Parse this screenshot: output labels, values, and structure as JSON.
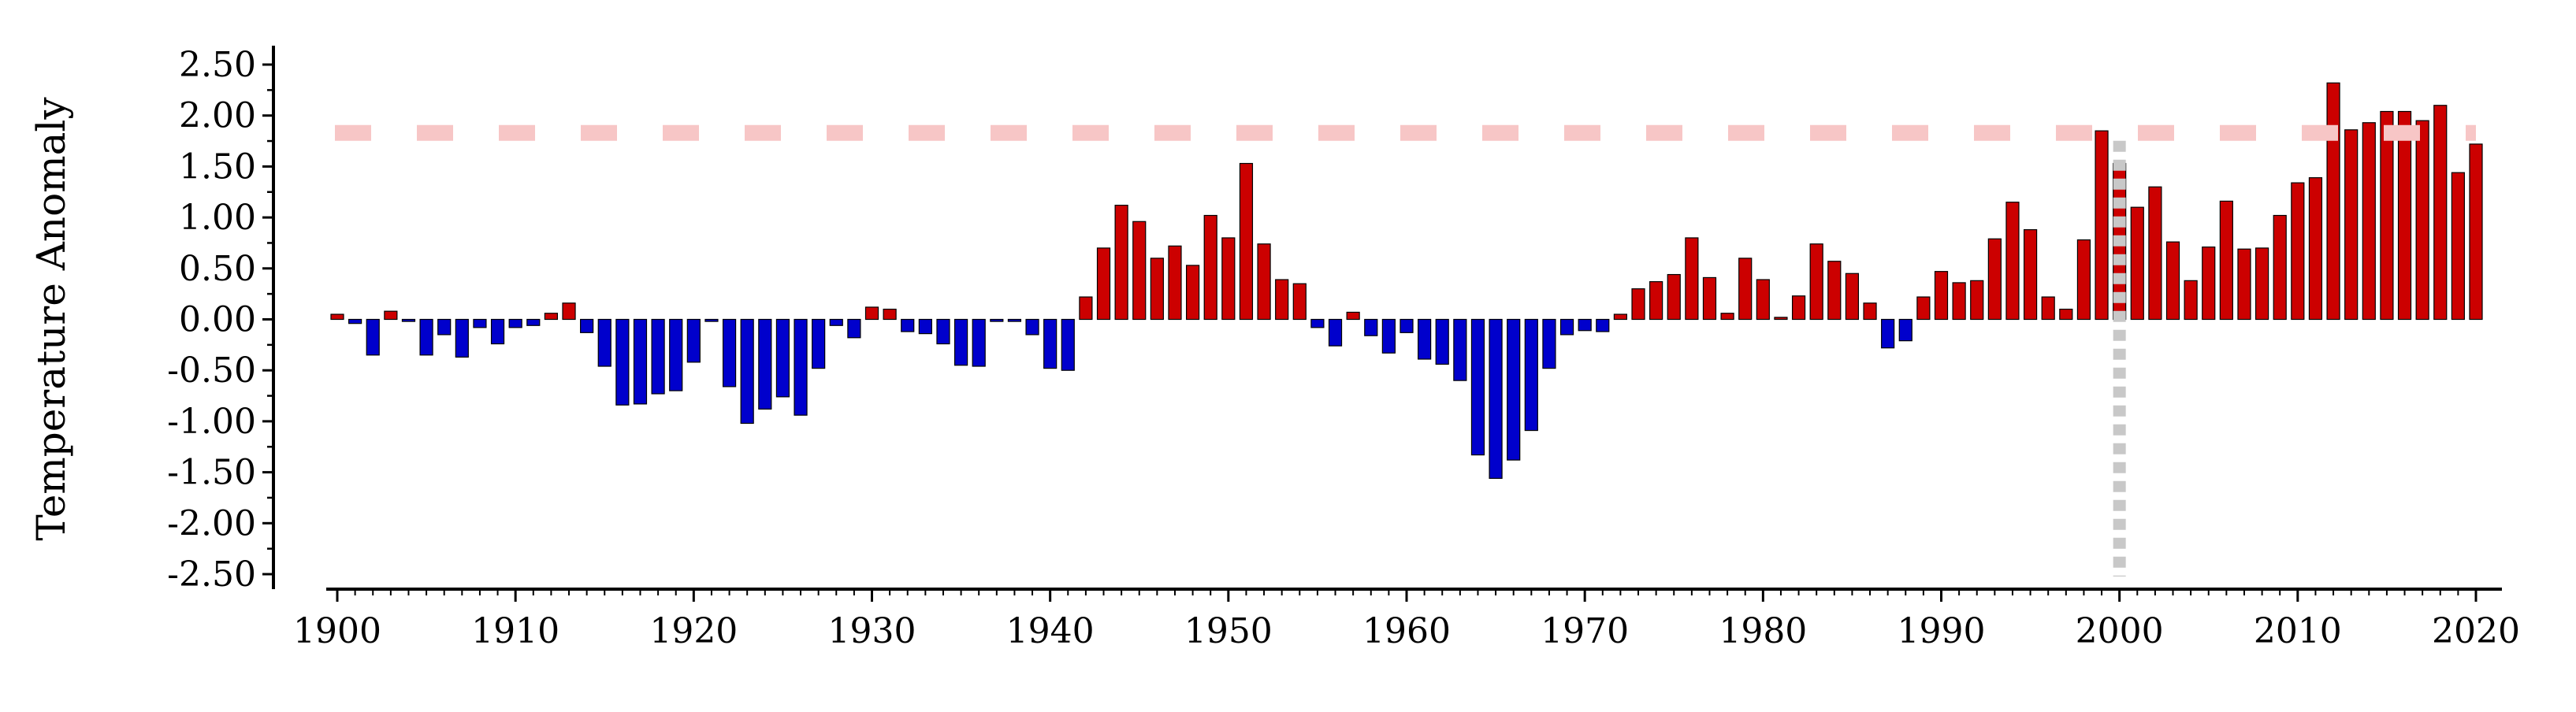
{
  "chart_data": {
    "type": "bar",
    "title": "",
    "xlabel": "",
    "ylabel": "Temperature Anomaly",
    "xlim": [
      1900,
      2020
    ],
    "ylim": [
      -2.5,
      2.5
    ],
    "x_ticks": [
      1900,
      1910,
      1920,
      1930,
      1940,
      1950,
      1960,
      1970,
      1980,
      1990,
      2000,
      2010,
      2020
    ],
    "x_tick_labels": [
      "1900",
      "1910",
      "1920",
      "1930",
      "1940",
      "1950",
      "1960",
      "1970",
      "1980",
      "1990",
      "2000",
      "2010",
      "2020"
    ],
    "y_ticks": [
      2.5,
      2.0,
      1.5,
      1.0,
      0.5,
      0.0,
      -0.5,
      -1.0,
      -1.5,
      -2.0,
      -2.5
    ],
    "y_tick_labels": [
      "2.50",
      "2.00",
      "1.50",
      "1.00",
      "0.50",
      "0.00",
      "-0.50",
      "-1.00",
      "-1.50",
      "-2.00",
      "-2.50"
    ],
    "grid": false,
    "legend": "none",
    "colors": {
      "positive": "#cc0000",
      "negative": "#0000cc",
      "threshold": "#f7c6c6",
      "marker": "#c8c8c8",
      "outline": "#000000"
    },
    "threshold_y": 1.83,
    "vertical_marker_x": 2000,
    "years": [
      1900,
      1901,
      1902,
      1903,
      1904,
      1905,
      1906,
      1907,
      1908,
      1909,
      1910,
      1911,
      1912,
      1913,
      1914,
      1915,
      1916,
      1917,
      1918,
      1919,
      1920,
      1921,
      1922,
      1923,
      1924,
      1925,
      1926,
      1927,
      1928,
      1929,
      1930,
      1931,
      1932,
      1933,
      1934,
      1935,
      1936,
      1937,
      1938,
      1939,
      1940,
      1941,
      1942,
      1943,
      1944,
      1945,
      1946,
      1947,
      1948,
      1949,
      1950,
      1951,
      1952,
      1953,
      1954,
      1955,
      1956,
      1957,
      1958,
      1959,
      1960,
      1961,
      1962,
      1963,
      1964,
      1965,
      1966,
      1967,
      1968,
      1969,
      1970,
      1971,
      1972,
      1973,
      1974,
      1975,
      1976,
      1977,
      1978,
      1979,
      1980,
      1981,
      1982,
      1983,
      1984,
      1985,
      1986,
      1987,
      1988,
      1989,
      1990,
      1991,
      1992,
      1993,
      1994,
      1995,
      1996,
      1997,
      1998,
      1999,
      2000,
      2001,
      2002,
      2003,
      2004,
      2005,
      2006,
      2007,
      2008,
      2009,
      2010,
      2011,
      2012,
      2013,
      2014,
      2015,
      2016,
      2017,
      2018,
      2019,
      2020
    ],
    "values": [
      0.05,
      -0.04,
      -0.35,
      0.08,
      -0.02,
      -0.35,
      -0.15,
      -0.37,
      -0.08,
      -0.24,
      -0.08,
      -0.06,
      0.06,
      0.16,
      -0.13,
      -0.46,
      -0.84,
      -0.83,
      -0.73,
      -0.7,
      -0.42,
      -0.02,
      -0.66,
      -1.02,
      -0.88,
      -0.76,
      -0.94,
      -0.48,
      -0.06,
      -0.18,
      0.12,
      0.1,
      -0.12,
      -0.14,
      -0.24,
      -0.45,
      -0.46,
      -0.02,
      -0.02,
      -0.15,
      -0.48,
      -0.5,
      0.22,
      0.7,
      1.12,
      0.96,
      0.6,
      0.72,
      0.53,
      1.02,
      0.8,
      1.53,
      0.74,
      0.39,
      0.35,
      -0.08,
      -0.26,
      0.07,
      -0.16,
      -0.33,
      -0.13,
      -0.39,
      -0.44,
      -0.6,
      -1.33,
      -1.56,
      -1.38,
      -1.09,
      -0.48,
      -0.15,
      -0.11,
      -0.12,
      0.05,
      0.3,
      0.37,
      0.44,
      0.8,
      0.41,
      0.06,
      0.6,
      0.39,
      0.02,
      0.23,
      0.74,
      0.57,
      0.45,
      0.16,
      -0.28,
      -0.21,
      0.22,
      0.47,
      0.36,
      0.38,
      0.79,
      1.15,
      0.88,
      0.22,
      0.1,
      0.78,
      1.85,
      1.53,
      1.1,
      1.3,
      0.76,
      0.38,
      0.71,
      1.16,
      0.69,
      0.7,
      1.02,
      1.34,
      1.39,
      2.32,
      1.86,
      1.93,
      2.04,
      2.04,
      1.95,
      2.1,
      1.44,
      1.72
    ]
  }
}
